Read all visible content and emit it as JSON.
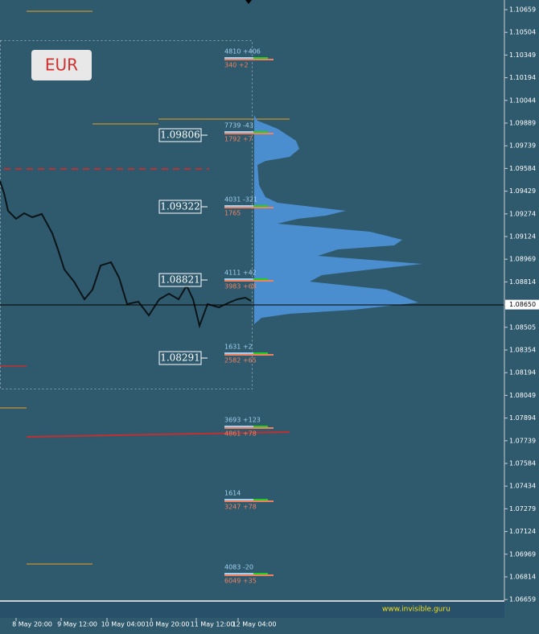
{
  "symbol": "EUR",
  "price_axis": [
    "1.10659",
    "1.10504",
    "1.10349",
    "1.10194",
    "1.10044",
    "1.09889",
    "1.09739",
    "1.09584",
    "1.09429",
    "1.09274",
    "1.09124",
    "1.08969",
    "1.08814",
    "1.08650",
    "1.08505",
    "1.08354",
    "1.08194",
    "1.08049",
    "1.07894",
    "1.07739",
    "1.07584",
    "1.07434",
    "1.07279",
    "1.07124",
    "1.06969",
    "1.06814",
    "1.06659"
  ],
  "current_price_index": 13,
  "time_axis": [
    "8 May 20:00",
    "9 May 12:00",
    "10 May 04:00",
    "10 May 20:00",
    "11 May 12:00",
    "12 May 04:00"
  ],
  "levels": [
    "1.09806",
    "1.09322",
    "1.08821",
    "1.08291"
  ],
  "volumes": [
    [
      "4810 +406",
      "340 +2"
    ],
    [
      "7739 -43",
      "1792 +7"
    ],
    [
      "4031 -321",
      "1765"
    ],
    [
      "4111 +42",
      "3983 +68"
    ],
    [
      "1631 +2",
      "2582 +65"
    ],
    [
      "3693 +123",
      "4861 +78"
    ],
    [
      "1614",
      "3247 +78"
    ],
    [
      "4083 -20",
      "6049 +35"
    ]
  ],
  "website": "www.invisible.guru"
}
